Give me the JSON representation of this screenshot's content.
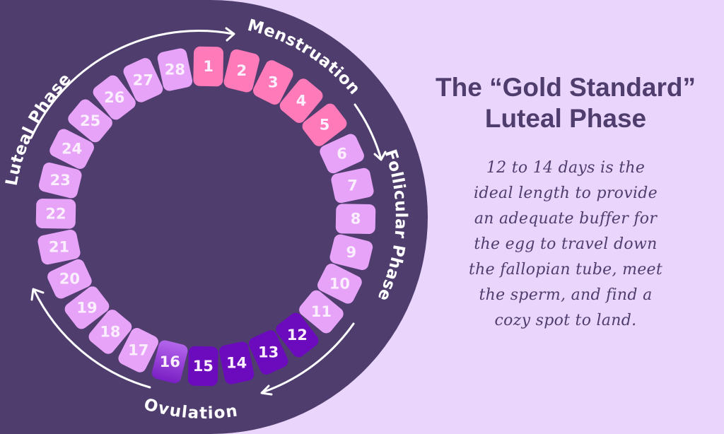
{
  "colors": {
    "background": "#ead6fc",
    "dark_panel": "#4f3d6e",
    "menstruation_tile": "#ff7ab8",
    "regular_tile": "#e6a3f7",
    "ovulation_tile": "#6c0bbd",
    "ovulation_edge_tile_top": "#7a1fc4",
    "ovulation_edge_tile_bottom": "#b466ec",
    "text_light": "#ffffff",
    "text_dark": "#4f3d6e"
  },
  "cycle": {
    "days": [
      {
        "day": "1",
        "phase": "menstruation"
      },
      {
        "day": "2",
        "phase": "menstruation"
      },
      {
        "day": "3",
        "phase": "menstruation"
      },
      {
        "day": "4",
        "phase": "menstruation"
      },
      {
        "day": "5",
        "phase": "menstruation"
      },
      {
        "day": "6",
        "phase": "follicular"
      },
      {
        "day": "7",
        "phase": "follicular"
      },
      {
        "day": "8",
        "phase": "follicular"
      },
      {
        "day": "9",
        "phase": "follicular"
      },
      {
        "day": "10",
        "phase": "follicular"
      },
      {
        "day": "11",
        "phase": "follicular"
      },
      {
        "day": "12",
        "phase": "ovulation"
      },
      {
        "day": "13",
        "phase": "ovulation"
      },
      {
        "day": "14",
        "phase": "ovulation"
      },
      {
        "day": "15",
        "phase": "ovulation"
      },
      {
        "day": "16",
        "phase": "ovulation-edge"
      },
      {
        "day": "17",
        "phase": "luteal"
      },
      {
        "day": "18",
        "phase": "luteal"
      },
      {
        "day": "19",
        "phase": "luteal"
      },
      {
        "day": "20",
        "phase": "luteal"
      },
      {
        "day": "21",
        "phase": "luteal"
      },
      {
        "day": "22",
        "phase": "luteal"
      },
      {
        "day": "23",
        "phase": "luteal"
      },
      {
        "day": "24",
        "phase": "luteal"
      },
      {
        "day": "25",
        "phase": "luteal"
      },
      {
        "day": "26",
        "phase": "luteal"
      },
      {
        "day": "27",
        "phase": "luteal"
      },
      {
        "day": "28",
        "phase": "luteal"
      }
    ],
    "phase_labels": {
      "menstruation": "Menstruation",
      "follicular": "Follicular Phase",
      "ovulation": "Ovulation",
      "luteal": "Luteal Phase"
    }
  },
  "panel": {
    "title_line1": "The “Gold Standard”",
    "title_line2": "Luteal Phase",
    "body_lines": [
      "12 to 14 days is the",
      "ideal length to provide",
      "an adequate buffer for",
      "the egg to travel down",
      "the fallopian tube, meet",
      "the sperm, and find a",
      "cozy spot to land."
    ]
  }
}
